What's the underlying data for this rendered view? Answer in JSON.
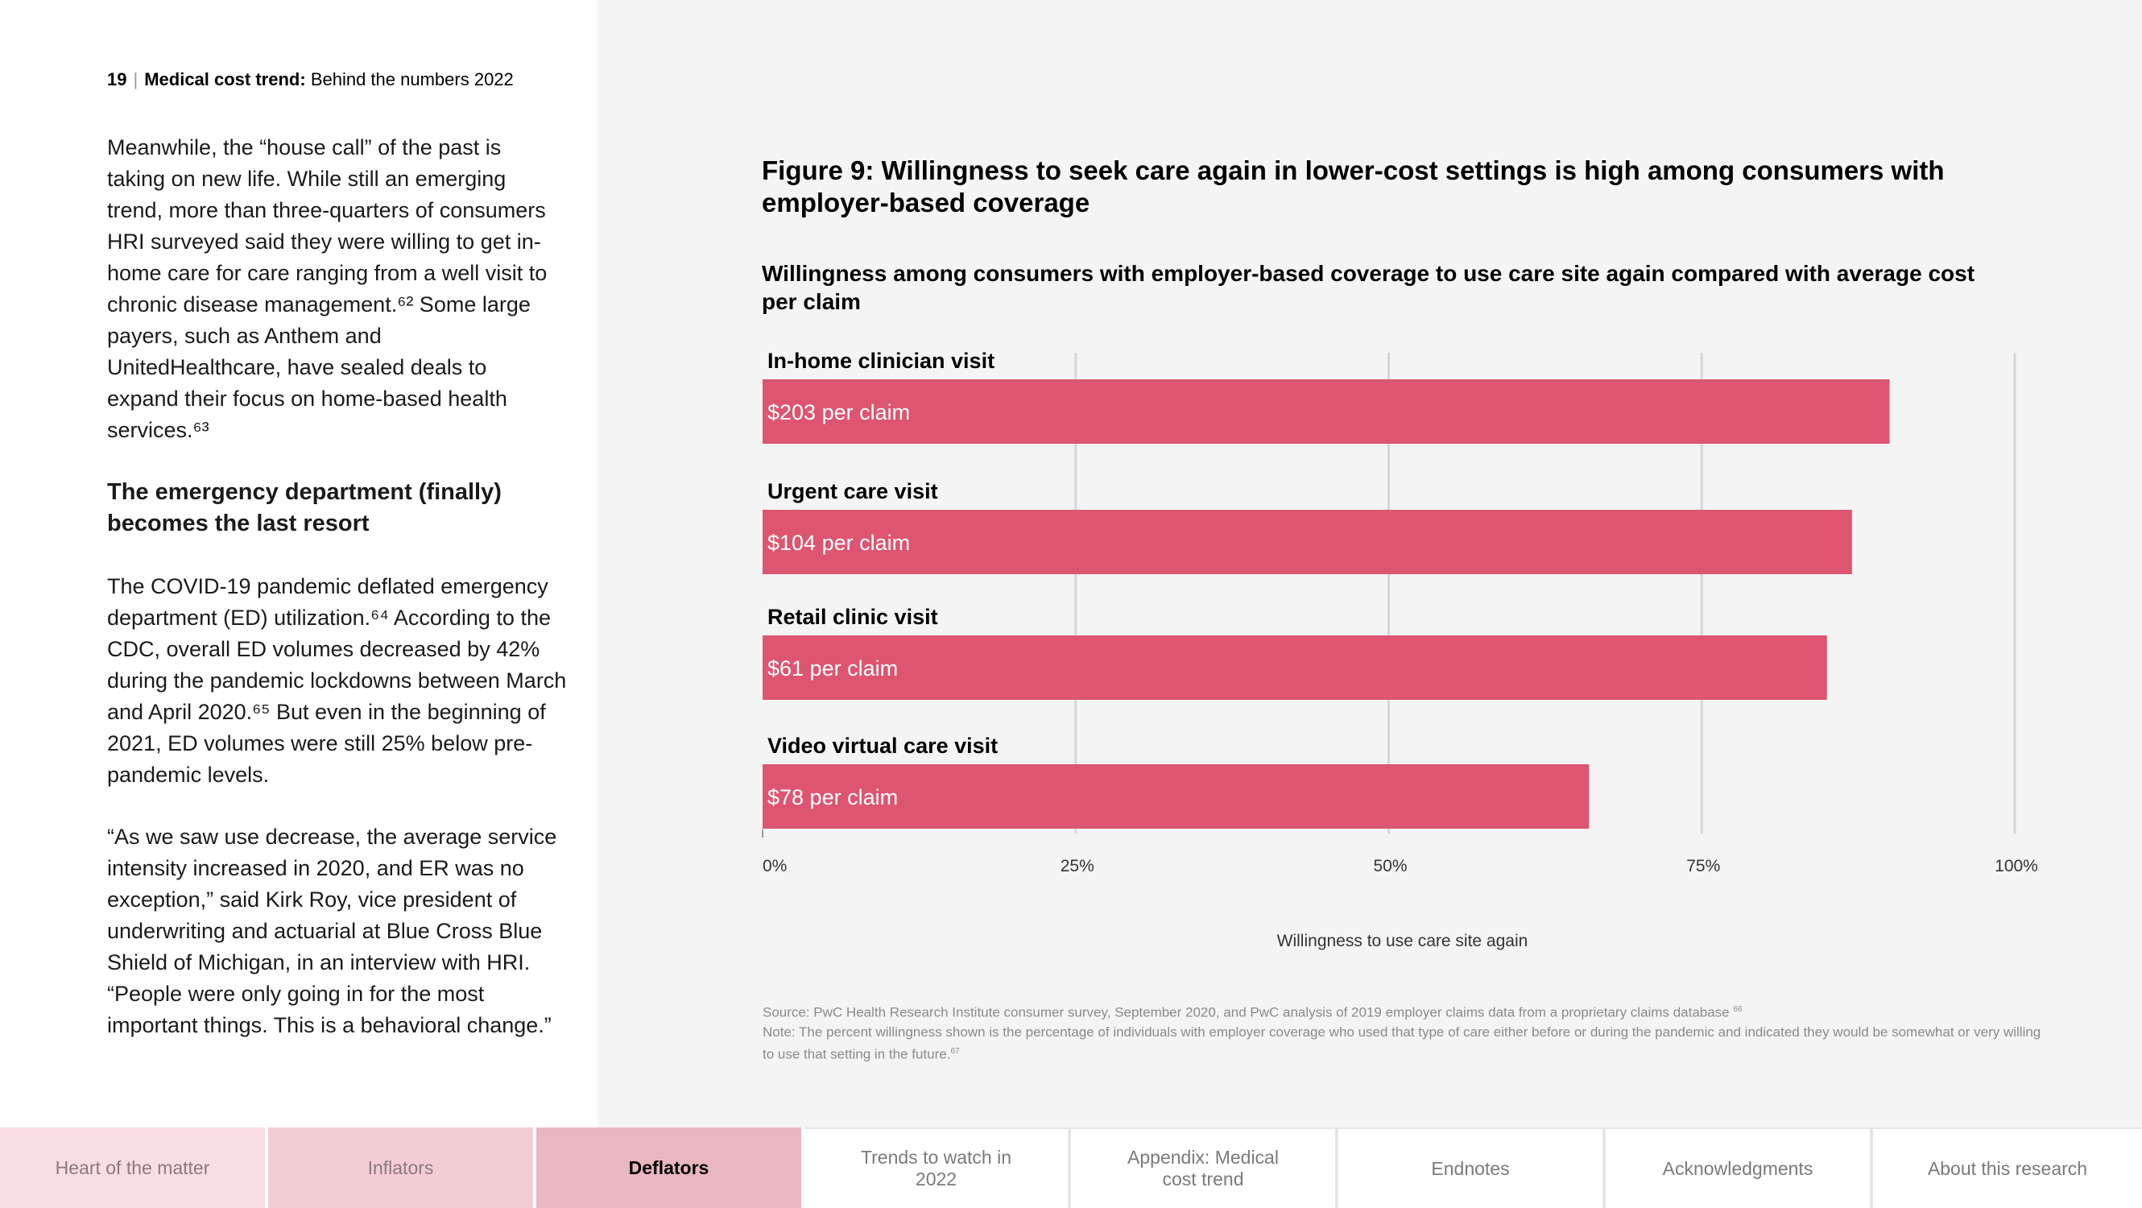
{
  "header": {
    "page_number": "19",
    "separator": "|",
    "title_bold": "Medical cost trend:",
    "title_rest": "Behind the numbers 2022"
  },
  "article": {
    "p1": "Meanwhile, the “house call” of the past is taking on new life. While still an emerging trend, more than three-quarters of consumers HRI surveyed said they were willing to get in-home care for care ranging from a well visit to chronic disease management.⁶² Some large payers, such as Anthem and UnitedHealthcare, have sealed deals to expand their focus on home-based health services.⁶³",
    "heading": "The emergency department (finally) becomes the last resort",
    "p2": "The COVID-19 pandemic deflated emergency department (ED) utilization.⁶⁴ According to the CDC, overall ED volumes decreased by 42% during the pandemic lockdowns between March and April 2020.⁶⁵ But even in the beginning of 2021, ED volumes were still 25% below pre-pandemic levels.",
    "p3": "“As we saw use decrease, the average service intensity increased in 2020, and ER was no exception,” said Kirk Roy, vice president of underwriting and actuarial at Blue Cross Blue Shield of Michigan, in an interview with HRI. “People were only going in for the most important things. This is a behavioral change.”"
  },
  "figure": {
    "title": "Figure 9: Willingness to seek care again in lower-cost settings is high among consumers with employer-based coverage",
    "subtitle": "Willingness among consumers with employer-based coverage to use care site again compared with average cost per claim",
    "source_line": "Source: PwC Health Research Institute consumer survey, September 2020, and PwC analysis of 2019 employer claims data from a proprietary claims database",
    "source_ref": "66",
    "note_line": "Note: The percent willingness shown is the percentage of individuals with employer coverage who used that type of care either before or during the pandemic and indicated they would be somewhat or very willing to use that setting in the future.",
    "note_ref": "67"
  },
  "chart_data": {
    "type": "bar",
    "orientation": "horizontal",
    "categories": [
      "In-home clinician visit",
      "Urgent care visit",
      "Retail clinic visit",
      "Video virtual care visit"
    ],
    "values": [
      90,
      87,
      85,
      66
    ],
    "bar_labels": [
      "$203 per claim",
      "$104 per claim",
      "$61 per claim",
      "$78 per claim"
    ],
    "xlabel": "Willingness to use care site again",
    "xlim": [
      0,
      100
    ],
    "xticks": [
      0,
      25,
      50,
      75,
      100
    ],
    "xtick_labels": [
      "0%",
      "25%",
      "50%",
      "75%",
      "100%"
    ],
    "grid": true,
    "bar_color": "#dd5570"
  },
  "nav": {
    "items": [
      {
        "label": "Heart of the matter"
      },
      {
        "label": "Inflators"
      },
      {
        "label": "Deflators"
      },
      {
        "label": "Trends to watch in 2022"
      },
      {
        "label": "Appendix: Medical cost trend"
      },
      {
        "label": "Endnotes"
      },
      {
        "label": "Acknowledgments"
      },
      {
        "label": "About this research"
      }
    ]
  },
  "colors": {
    "accent": "#dd5570",
    "panel_bg": "#f4f4f4",
    "nav_active": "#eab6c0"
  }
}
